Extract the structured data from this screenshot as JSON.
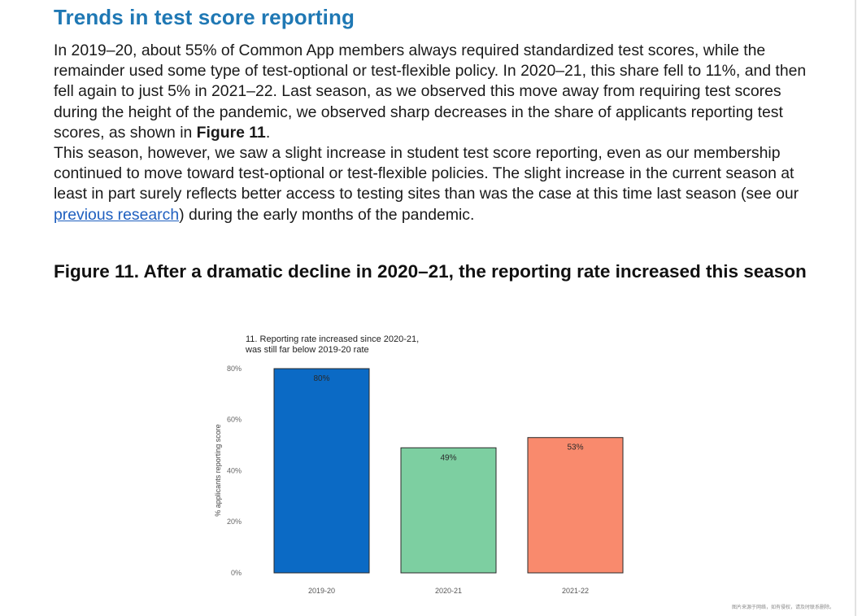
{
  "section_title": "Trends in test score reporting",
  "paragraph1": {
    "text": "In 2019–20, about 55% of Common App members always required standardized test scores, while the remainder used some type of test-optional or test-flexible policy. In 2020–21, this share fell to 11%, and then fell again to just 5% in 2021–22. Last season, as we observed this move away from requiring test scores during the height of the pandemic, we observed sharp decreases in the share of applicants reporting test scores, as shown in ",
    "bold_ref": "Figure 11",
    "end": "."
  },
  "paragraph2": {
    "before_link": "This season, however, we saw a slight increase in student test score reporting, even as our membership continued to move toward test-optional or test-flexible policies. The slight increase in the current season at least in part surely reflects better access to testing sites than was the case at this time last season (see our ",
    "link_text": "previous research",
    "after_link": ") during the early months of the pandemic."
  },
  "figure_heading": "Figure 11. After a dramatic decline in 2020–21, the reporting rate increased this season",
  "chart_data": {
    "type": "bar",
    "title_lines": [
      "11. Reporting rate increased since 2020-21,",
      "was still far below 2019-20 rate"
    ],
    "categories": [
      "2019-20",
      "2020-21",
      "2021-22"
    ],
    "values": [
      80,
      49,
      53
    ],
    "data_labels": [
      "80%",
      "49%",
      "53%"
    ],
    "bar_colors": [
      "#0b6ac5",
      "#7dcfa1",
      "#f98a6d"
    ],
    "ylabel": "% applicants reporting score",
    "ylim": [
      0,
      80
    ],
    "yticks": [
      0,
      20,
      40,
      60,
      80
    ],
    "ytick_labels": [
      "0%",
      "20%",
      "40%",
      "60%",
      "80%"
    ],
    "grid": false,
    "legend": "none"
  },
  "watermark": "图片来源于网络，如有侵权，请及时联系删除。"
}
